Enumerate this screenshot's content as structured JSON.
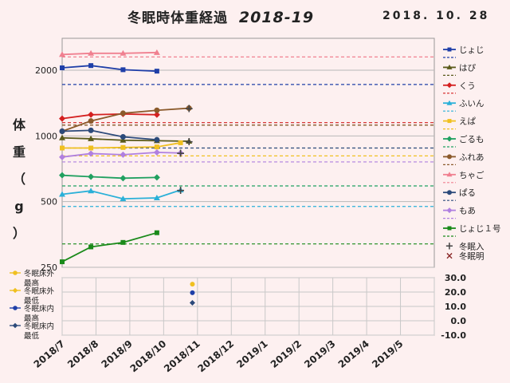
{
  "title": "冬眠時体重経過",
  "season": "2018-19",
  "date": "2018. 10. 28",
  "ylabel_chars": [
    "体",
    "重",
    "（",
    "g",
    "）"
  ],
  "chart_data": [
    {
      "type": "line",
      "name": "weight",
      "x": [
        "2018/7",
        "2018/8",
        "2018/9",
        "2018/10",
        "2018/11",
        "2018/12",
        "2019/1",
        "2019/2",
        "2019/3",
        "2019/4",
        "2019/5"
      ],
      "y_scale": "log",
      "ylim": [
        250,
        2800
      ],
      "yticks": [
        250,
        500,
        1000,
        2000
      ],
      "ytick_labels": [
        "250",
        "500",
        "1000",
        "2000"
      ],
      "grid": true,
      "legend_position": "right",
      "series": [
        {
          "name": "じょじ",
          "color": "#1f3fa8",
          "marker": "square",
          "points": [
            [
              0.0,
              2050
            ],
            [
              0.85,
              2100
            ],
            [
              1.8,
              2010
            ],
            [
              2.8,
              1980
            ]
          ],
          "ref": 1720
        },
        {
          "name": "はぴ",
          "color": "#5a5a1a",
          "marker": "triangle",
          "points": [
            [
              0.0,
              980
            ],
            [
              0.85,
              970
            ],
            [
              1.8,
              955
            ],
            [
              2.8,
              950
            ],
            [
              3.75,
              945
            ]
          ],
          "ref": 1120
        },
        {
          "name": "くう",
          "color": "#d42020",
          "marker": "diamond",
          "points": [
            [
              0.0,
              1200
            ],
            [
              0.85,
              1250
            ],
            [
              1.8,
              1260
            ],
            [
              2.8,
              1250
            ]
          ],
          "ref": 1150
        },
        {
          "name": "ふいん",
          "color": "#2ab0d8",
          "marker": "triangle",
          "points": [
            [
              0.0,
              540
            ],
            [
              0.85,
              560
            ],
            [
              1.8,
              515
            ],
            [
              2.8,
              520
            ],
            [
              3.5,
              565
            ]
          ],
          "ref": 475
        },
        {
          "name": "えぱ",
          "color": "#f0c020",
          "marker": "square",
          "points": [
            [
              0.0,
              880
            ],
            [
              0.85,
              880
            ],
            [
              1.8,
              885
            ],
            [
              2.8,
              890
            ],
            [
              3.5,
              930
            ]
          ],
          "ref": 810
        },
        {
          "name": "ごるも",
          "color": "#20a060",
          "marker": "diamond",
          "points": [
            [
              0.0,
              660
            ],
            [
              0.85,
              650
            ],
            [
              1.8,
              640
            ],
            [
              2.8,
              645
            ]
          ],
          "ref": 590
        },
        {
          "name": "ふれあ",
          "color": "#8b5a2b",
          "marker": "circle",
          "points": [
            [
              0.0,
              1050
            ],
            [
              0.85,
              1170
            ],
            [
              1.8,
              1270
            ],
            [
              2.8,
              1310
            ],
            [
              3.75,
              1340
            ]
          ],
          "ref": 1120
        },
        {
          "name": "ちゃご",
          "color": "#f08090",
          "marker": "triangle",
          "points": [
            [
              0.0,
              2360
            ],
            [
              0.85,
              2390
            ],
            [
              1.8,
              2390
            ],
            [
              2.8,
              2410
            ]
          ],
          "ref": 2300
        },
        {
          "name": "ぱる",
          "color": "#2c4a7a",
          "marker": "circle",
          "points": [
            [
              0.0,
              1050
            ],
            [
              0.85,
              1060
            ],
            [
              1.8,
              990
            ],
            [
              2.8,
              960
            ]
          ],
          "ref": 880
        },
        {
          "name": "もあ",
          "color": "#b080e0",
          "marker": "diamond",
          "points": [
            [
              0.0,
              800
            ],
            [
              0.85,
              830
            ],
            [
              1.8,
              820
            ],
            [
              2.8,
              840
            ],
            [
              3.5,
              835
            ]
          ],
          "ref": 760
        },
        {
          "name": "じょじ１号",
          "color": "#1a8a1a",
          "marker": "square",
          "points": [
            [
              0.0,
              265
            ],
            [
              0.85,
              310
            ],
            [
              1.8,
              325
            ],
            [
              2.8,
              360
            ]
          ],
          "ref": 320
        }
      ],
      "events": {
        "hibernation_start": {
          "label": "冬眠入",
          "marker": "+",
          "points": [
            [
              3.75,
              945
            ],
            [
              3.75,
              1340
            ],
            [
              3.5,
              565
            ],
            [
              3.5,
              835
            ]
          ]
        },
        "hibernation_end": {
          "label": "冬眠明",
          "marker": "×",
          "points": []
        }
      }
    },
    {
      "type": "scatter",
      "name": "temperature",
      "ylim": [
        -10,
        30
      ],
      "yticks": [
        -10,
        0,
        10,
        20,
        30
      ],
      "ytick_labels": [
        "-10.0",
        "0.0",
        "10.0",
        "20.0",
        "30.0"
      ],
      "axis_side": "right",
      "series": [
        {
          "name": "冬眠床外最高",
          "color": "#f0c020",
          "marker": "circle",
          "points": [
            [
              3.85,
              25.5
            ]
          ]
        },
        {
          "name": "冬眠床外最低",
          "color": "#f0c020",
          "marker": "diamond",
          "points": []
        },
        {
          "name": "冬眠床内最高",
          "color": "#1f3fa8",
          "marker": "circle",
          "points": [
            [
              3.85,
              19.5
            ]
          ]
        },
        {
          "name": "冬眠床内最低",
          "color": "#2c4a7a",
          "marker": "diamond",
          "points": [
            [
              3.85,
              12.5
            ]
          ]
        }
      ],
      "legend_labels": [
        [
          "冬眠床外",
          "最高"
        ],
        [
          "冬眠床外",
          "最低"
        ],
        [
          "冬眠床内",
          "最高"
        ],
        [
          "冬眠床内",
          "最低"
        ]
      ]
    }
  ]
}
